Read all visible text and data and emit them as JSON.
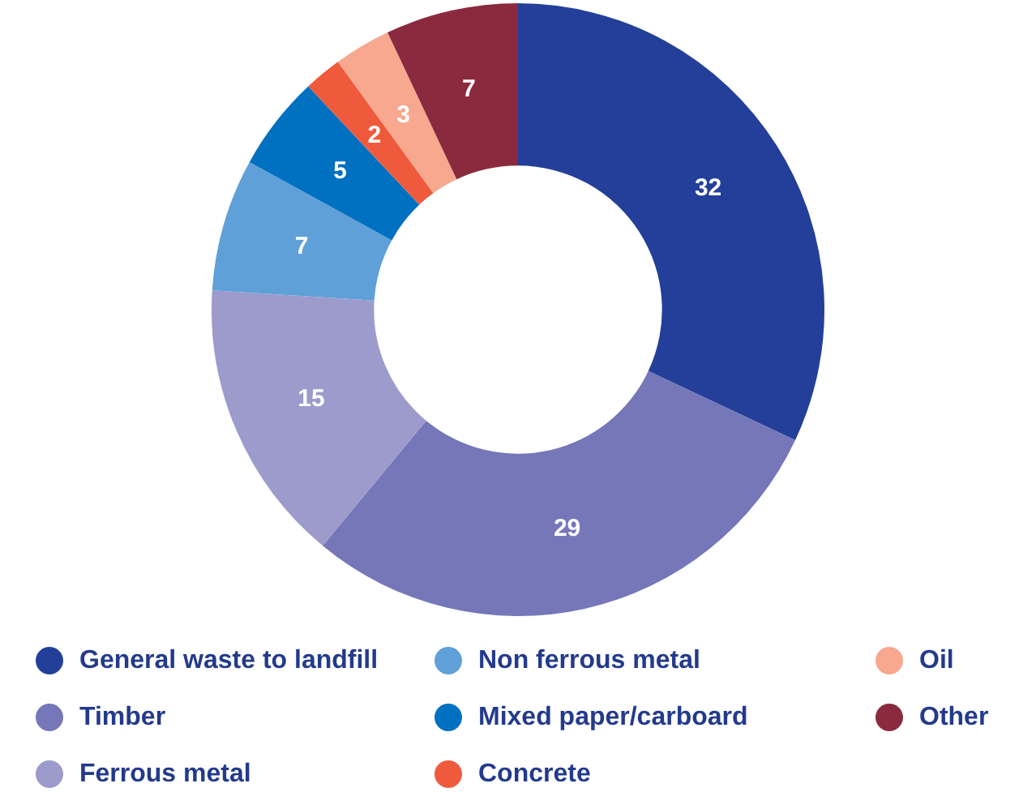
{
  "chart_data": {
    "type": "donut",
    "categories": [
      "General waste to landfill",
      "Timber",
      "Ferrous metal",
      "Non ferrous metal",
      "Mixed paper/carboard",
      "Concrete",
      "Oil",
      "Other"
    ],
    "values": [
      32,
      29,
      15,
      7,
      5,
      2,
      3,
      7
    ],
    "colors": [
      "#233f99",
      "#7577b9",
      "#9c9bcc",
      "#5fa0d8",
      "#0070c0",
      "#f05a3c",
      "#f7a88e",
      "#8b2a3e"
    ],
    "data_labels": true,
    "legend": "bottom"
  }
}
